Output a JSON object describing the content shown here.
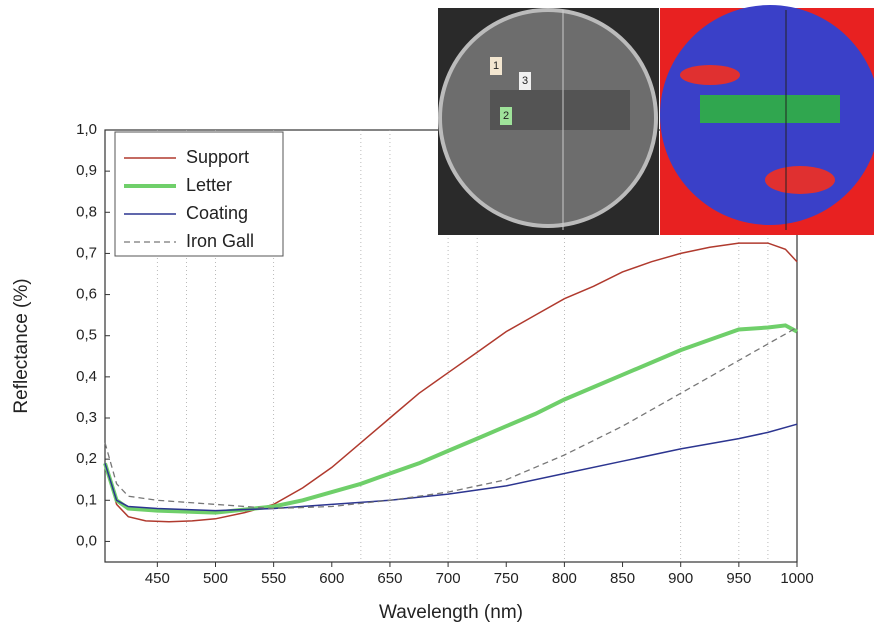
{
  "chart_data": {
    "type": "line",
    "xlabel": "Wavelength (nm)",
    "ylabel": "Reflectance (%)",
    "xlim": [
      405,
      1000
    ],
    "ylim": [
      -0.05,
      1.0
    ],
    "xticks": [
      450,
      500,
      550,
      600,
      650,
      700,
      750,
      800,
      850,
      900,
      950,
      1000
    ],
    "yticks": [
      {
        "value": 0,
        "label": "0,0"
      },
      {
        "value": 0.1,
        "label": "0,1"
      },
      {
        "value": 0.2,
        "label": "0,2"
      },
      {
        "value": 0.3,
        "label": "0,3"
      },
      {
        "value": 0.4,
        "label": "0,4"
      },
      {
        "value": 0.5,
        "label": "0,5"
      },
      {
        "value": 0.6,
        "label": "0,6"
      },
      {
        "value": 0.7,
        "label": "0,7"
      },
      {
        "value": 0.8,
        "label": "0,8"
      },
      {
        "value": 0.9,
        "label": "0,9"
      },
      {
        "value": 1,
        "label": "1,0"
      }
    ],
    "xgrid": [
      450,
      475,
      500,
      550,
      625,
      650,
      700,
      725,
      800,
      900,
      950,
      975
    ],
    "legend": "upper left",
    "series": [
      {
        "name": "Support",
        "color": "#b03a2e",
        "line_width": 1.5,
        "dash": false,
        "x": [
          405,
          415,
          425,
          440,
          460,
          480,
          500,
          525,
          550,
          575,
          600,
          625,
          650,
          675,
          700,
          725,
          750,
          775,
          800,
          825,
          850,
          875,
          900,
          925,
          950,
          975,
          990,
          1000
        ],
        "values": [
          0.19,
          0.09,
          0.06,
          0.05,
          0.048,
          0.05,
          0.055,
          0.07,
          0.09,
          0.13,
          0.18,
          0.24,
          0.3,
          0.36,
          0.41,
          0.46,
          0.51,
          0.55,
          0.59,
          0.62,
          0.655,
          0.68,
          0.7,
          0.715,
          0.725,
          0.725,
          0.71,
          0.68
        ]
      },
      {
        "name": "Letter",
        "color": "#6fcf6a",
        "line_width": 4,
        "dash": false,
        "x": [
          405,
          415,
          425,
          450,
          500,
          550,
          575,
          600,
          625,
          650,
          675,
          700,
          725,
          750,
          775,
          800,
          825,
          850,
          875,
          900,
          925,
          950,
          975,
          990,
          1000
        ],
        "values": [
          0.19,
          0.1,
          0.08,
          0.075,
          0.07,
          0.085,
          0.1,
          0.12,
          0.14,
          0.165,
          0.19,
          0.22,
          0.25,
          0.28,
          0.31,
          0.345,
          0.375,
          0.405,
          0.435,
          0.465,
          0.49,
          0.515,
          0.52,
          0.525,
          0.51
        ]
      },
      {
        "name": "Coating",
        "color": "#2c3590",
        "line_width": 1.5,
        "dash": false,
        "x": [
          405,
          415,
          425,
          450,
          500,
          550,
          600,
          650,
          700,
          750,
          800,
          850,
          900,
          950,
          975,
          1000
        ],
        "values": [
          0.19,
          0.1,
          0.085,
          0.08,
          0.075,
          0.08,
          0.09,
          0.1,
          0.115,
          0.135,
          0.165,
          0.195,
          0.225,
          0.25,
          0.265,
          0.285
        ]
      },
      {
        "name": "Iron Gall",
        "color": "#777777",
        "line_width": 1.3,
        "dash": true,
        "x": [
          405,
          415,
          425,
          450,
          500,
          550,
          600,
          650,
          700,
          750,
          800,
          850,
          900,
          950,
          975,
          1000
        ],
        "values": [
          0.24,
          0.14,
          0.11,
          0.1,
          0.09,
          0.08,
          0.085,
          0.1,
          0.12,
          0.15,
          0.21,
          0.28,
          0.36,
          0.44,
          0.48,
          0.52
        ]
      }
    ]
  },
  "inset": {
    "labels": [
      "1",
      "3",
      "2"
    ]
  }
}
